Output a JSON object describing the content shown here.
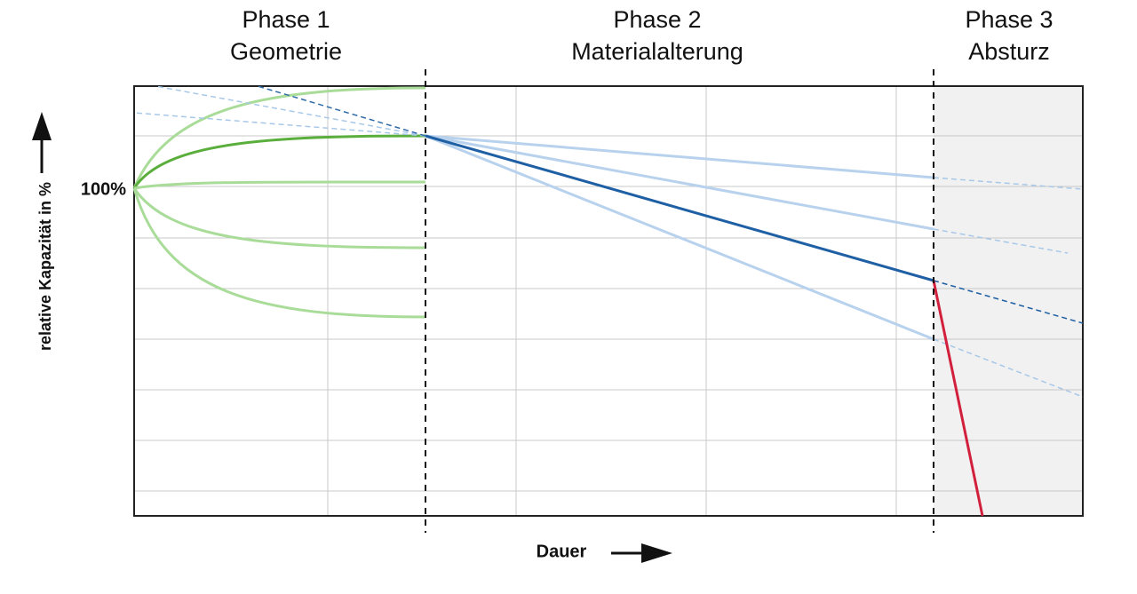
{
  "phases": [
    {
      "name": "Phase 1",
      "label": "Geometrie"
    },
    {
      "name": "Phase 2",
      "label": "Materialalterung"
    },
    {
      "name": "Phase 3",
      "label": "Absturz"
    }
  ],
  "y_axis": {
    "label": "relative Kapazität in %",
    "reference": "100%"
  },
  "x_axis": {
    "label": "Dauer"
  }
}
